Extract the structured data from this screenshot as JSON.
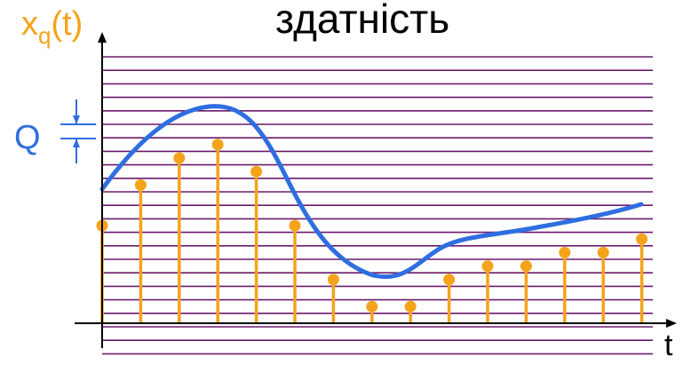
{
  "title": "здатність",
  "y_axis_label": {
    "main": "x",
    "subscript": "q",
    "suffix": "(t)"
  },
  "x_axis_label": "t",
  "q_label": "Q",
  "colors": {
    "levels": "#6b1a6b",
    "signal": "#2f6ee0",
    "samples": "#f5a31a",
    "label_orange": "#f5a31a",
    "label_blue": "#2f6ee0",
    "axis": "#000000"
  },
  "diagram": {
    "quantization_levels": 23,
    "sample_count": 15,
    "sample_values": [
      9.5,
      12.5,
      14.5,
      15.5,
      13.5,
      9.5,
      5.5,
      3.5,
      3.5,
      5.5,
      6.5,
      6.5,
      7.5,
      7.5,
      8.5
    ]
  }
}
